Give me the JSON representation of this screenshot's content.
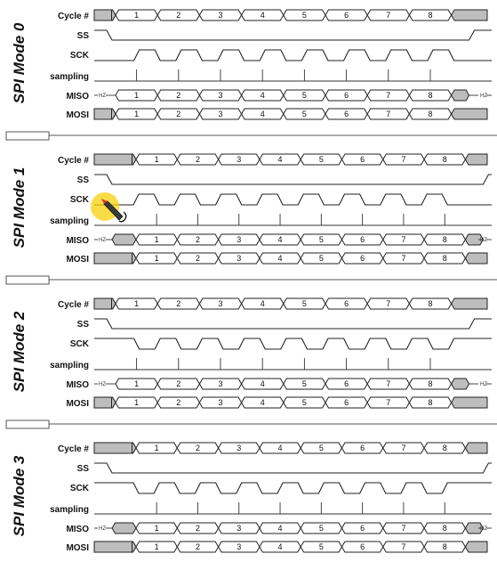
{
  "signals": {
    "cycle": "Cycle #",
    "ss": "SS",
    "sck": "SCK",
    "sampling": "sampling",
    "miso": "MISO",
    "mosi": "MOSI"
  },
  "hz_label": "HZ",
  "cycle_numbers": [
    "1",
    "2",
    "3",
    "4",
    "5",
    "6",
    "7",
    "8"
  ],
  "modes": [
    {
      "title": "SPI Mode 0",
      "cpol": 0,
      "cpha": 0
    },
    {
      "title": "SPI Mode 1",
      "cpol": 0,
      "cpha": 1
    },
    {
      "title": "SPI Mode 2",
      "cpol": 1,
      "cpha": 0
    },
    {
      "title": "SPI Mode 3",
      "cpol": 1,
      "cpha": 1
    }
  ],
  "cursor": {
    "icon": "pen-cursor-icon",
    "highlight_color": "#f5d20a"
  }
}
